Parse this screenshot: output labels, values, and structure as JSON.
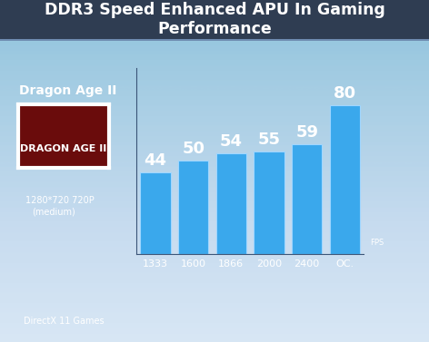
{
  "chart_data": {
    "type": "bar",
    "title": "DDR3 Speed Enhanced APU In Gaming Performance",
    "game": "Dragon Age II",
    "logo_text": "DRAGON AGE II",
    "resolution": "1280*720 720P",
    "preset": "(medium)",
    "footnote": "DirectX 11 Games",
    "y_label": "FPS",
    "categories": [
      "1333",
      "1600",
      "1866",
      "2000",
      "2400",
      "OC."
    ],
    "values": [
      44,
      50,
      54,
      55,
      59,
      80
    ],
    "color": "#3aa8ec",
    "ylim": [
      0,
      100
    ],
    "data_labels": true,
    "tick_labels": "x"
  }
}
